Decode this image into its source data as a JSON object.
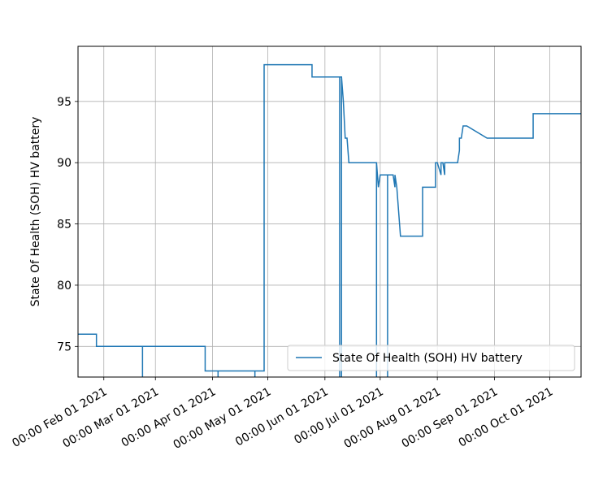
{
  "chart_data": {
    "type": "line",
    "title": "",
    "xlabel": "",
    "ylabel": "State Of Health (SOH) HV battery",
    "x_tick_labels": [
      "00:00 Feb 01 2021",
      "00:00 Mar 01 2021",
      "00:00 Apr 01 2021",
      "00:00 May 01 2021",
      "00:00 Jun 01 2021",
      "00:00 Jul 01 2021",
      "00:00 Aug 01 2021",
      "00:00 Sep 01 2021",
      "00:00 Oct 01 2021"
    ],
    "y_ticks": [
      75,
      80,
      85,
      90,
      95
    ],
    "xlim": [
      "2021-01-18",
      "2021-10-18"
    ],
    "ylim": [
      72.5,
      99.5
    ],
    "grid": true,
    "legend": {
      "placement": "lower-right",
      "entries": [
        "State Of Health (SOH) HV battery"
      ]
    },
    "series": [
      {
        "name": "State Of Health (SOH) HV battery",
        "color": "#1f77b4",
        "points": [
          [
            "2021-01-18",
            76
          ],
          [
            "2021-01-28",
            76
          ],
          [
            "2021-01-28",
            75
          ],
          [
            "2021-02-22",
            75
          ],
          [
            "2021-02-22",
            72
          ],
          [
            "2021-02-22",
            75
          ],
          [
            "2021-03-28",
            75
          ],
          [
            "2021-03-28",
            73
          ],
          [
            "2021-04-04",
            73
          ],
          [
            "2021-04-04",
            72
          ],
          [
            "2021-04-04",
            73
          ],
          [
            "2021-04-24",
            73
          ],
          [
            "2021-04-24",
            72
          ],
          [
            "2021-04-24",
            73
          ],
          [
            "2021-04-29",
            73
          ],
          [
            "2021-04-29",
            98
          ],
          [
            "2021-05-25",
            98
          ],
          [
            "2021-05-25",
            97
          ],
          [
            "2021-06-09",
            97
          ],
          [
            "2021-06-09",
            72
          ],
          [
            "2021-06-09",
            97
          ],
          [
            "2021-06-10",
            97
          ],
          [
            "2021-06-10",
            72
          ],
          [
            "2021-06-10",
            97
          ],
          [
            "2021-06-11",
            95
          ],
          [
            "2021-06-12",
            92
          ],
          [
            "2021-06-13",
            92
          ],
          [
            "2021-06-14",
            90
          ],
          [
            "2021-06-29",
            90
          ],
          [
            "2021-06-29",
            72
          ],
          [
            "2021-06-29",
            90
          ],
          [
            "2021-06-30",
            88
          ],
          [
            "2021-07-01",
            89
          ],
          [
            "2021-07-05",
            89
          ],
          [
            "2021-07-05",
            72
          ],
          [
            "2021-07-05",
            89
          ],
          [
            "2021-07-08",
            89
          ],
          [
            "2021-07-09",
            88
          ],
          [
            "2021-07-09",
            89
          ],
          [
            "2021-07-10",
            88
          ],
          [
            "2021-07-11",
            86
          ],
          [
            "2021-07-12",
            84
          ],
          [
            "2021-07-24",
            84
          ],
          [
            "2021-07-24",
            88
          ],
          [
            "2021-07-31",
            88
          ],
          [
            "2021-07-31",
            90
          ],
          [
            "2021-08-01",
            90
          ],
          [
            "2021-08-03",
            89
          ],
          [
            "2021-08-03",
            90
          ],
          [
            "2021-08-04",
            90
          ],
          [
            "2021-08-05",
            89
          ],
          [
            "2021-08-05",
            90
          ],
          [
            "2021-08-09",
            90
          ],
          [
            "2021-08-12",
            90
          ],
          [
            "2021-08-13",
            91
          ],
          [
            "2021-08-13",
            92
          ],
          [
            "2021-08-14",
            92
          ],
          [
            "2021-08-15",
            93
          ],
          [
            "2021-08-17",
            93
          ],
          [
            "2021-08-28",
            92
          ],
          [
            "2021-09-22",
            92
          ],
          [
            "2021-09-22",
            94
          ],
          [
            "2021-10-18",
            94
          ]
        ]
      }
    ]
  }
}
